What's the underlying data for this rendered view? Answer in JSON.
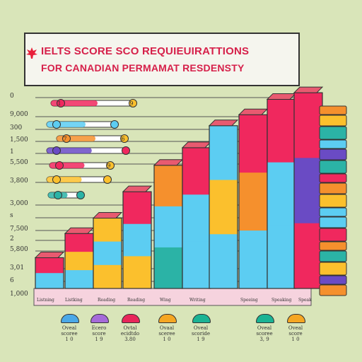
{
  "title": {
    "line1": "IELTS SCORE SCO REQUIEUIRATTIONS",
    "line2": "FOR CANADIAN PERMAMAT RESDENSTY"
  },
  "y_labels": [
    "0",
    "9,000",
    "300",
    "1,500",
    "1",
    "5,500",
    "3,800",
    "3,000",
    "s",
    "7,500",
    "2",
    "5,800",
    "3,01",
    "6",
    "1,000"
  ],
  "x_labels": [
    "Listning",
    "Listking",
    "Reading",
    "Reading",
    "Wing",
    "Writing",
    "Speeing",
    "Speaking",
    "Speak"
  ],
  "pill_labels": [
    {
      "left": "1",
      "right": "9"
    },
    {
      "left": "",
      "right": ""
    },
    {
      "left": "7",
      "right": "6"
    },
    {
      "left": "",
      "right": ""
    },
    {
      "left": "",
      "right": "9"
    },
    {
      "left": "",
      "right": ""
    }
  ],
  "legend": [
    {
      "line1": "Oveal",
      "line2": "scoree",
      "line3": "1  0",
      "color": "#4aa8e8"
    },
    {
      "line1": "Ecero",
      "line2": "score",
      "line3": "1  9",
      "color": "#a56ad9"
    },
    {
      "line1": "Ovtal",
      "line2": "ecidtdo",
      "line3": "3.80",
      "color": "#e8265a"
    },
    {
      "line1": "Ovaal",
      "line2": "sceree",
      "line3": "1  0",
      "color": "#f5a623"
    },
    {
      "line1": "Oveal",
      "line2": "scoride",
      "line3": "1  9",
      "color": "#1ab394"
    },
    {
      "line1": "Oveal",
      "line2": "scoree",
      "line3": "3, 9",
      "color": "#1ab394"
    },
    {
      "line1": "Oveal",
      "line2": "score",
      "line3": "1  0",
      "color": "#f5a623"
    }
  ],
  "colors": {
    "pink": "#f0285e",
    "blue": "#5ccdf2",
    "yellow": "#fbc02d",
    "orange": "#f5902d",
    "teal": "#2bb3a6",
    "purple": "#6a4bc4",
    "background": "#d9e5b9"
  },
  "chart_data": {
    "type": "bar",
    "title": "IELTS SCORE SCO REQUIEUIRATTIONS FOR CANADIAN PERMAMAT RESDENSTY",
    "categories": [
      "Listning",
      "Listking",
      "Reading",
      "Reading",
      "Wing",
      "Writing",
      "Speeing",
      "Speaking",
      "Speak"
    ],
    "values": [
      1.4,
      2.5,
      3.2,
      4.4,
      5.6,
      6.4,
      7.4,
      7.9,
      8.6
    ],
    "ylim": [
      0,
      9
    ],
    "grid": true,
    "legend": "bottom"
  }
}
